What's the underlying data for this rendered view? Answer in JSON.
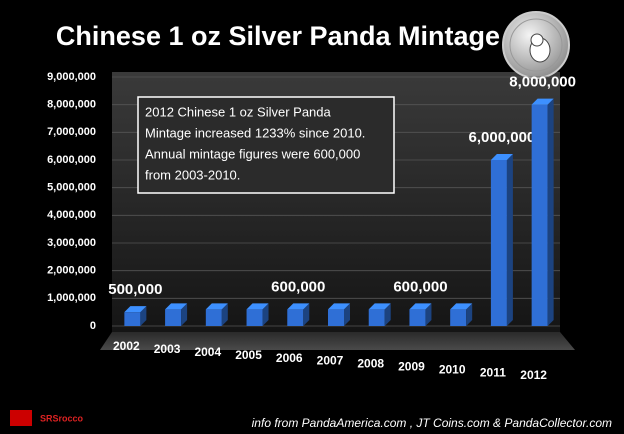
{
  "chart_data": {
    "type": "bar3d",
    "title": "Chinese 1 oz Silver Panda Mintage",
    "categories": [
      "2002",
      "2003",
      "2004",
      "2005",
      "2006",
      "2007",
      "2008",
      "2009",
      "2010",
      "2011",
      "2012"
    ],
    "values": [
      500000,
      600000,
      600000,
      600000,
      600000,
      600000,
      600000,
      600000,
      600000,
      6000000,
      8000000
    ],
    "value_labels": [
      "500,000",
      null,
      null,
      null,
      "600,000",
      null,
      null,
      "600,000",
      null,
      "6,000,000",
      "8,000,000"
    ],
    "color": "#2f6fd6",
    "ylim": [
      0,
      9000000
    ],
    "yticks": [
      0,
      {
        "value": 1000000,
        "label": "1,000,000"
      },
      {
        "value": 2000000,
        "label": "2,000,000"
      },
      {
        "value": 3000000,
        "label": "3,000,000"
      },
      {
        "value": 4000000,
        "label": "4,000,000"
      },
      {
        "value": 5000000,
        "label": "5,000,000"
      },
      {
        "value": 6000000,
        "label": "6,000,000"
      },
      {
        "value": 7000000,
        "label": "7,000,000"
      },
      {
        "value": 8000000,
        "label": "8,000,000"
      },
      {
        "value": 9000000,
        "label": "9,000,000"
      }
    ],
    "grid": true,
    "annotation": [
      "2012 Chinese 1 oz Silver Panda",
      "Mintage increased 1233% since 2010.",
      "Annual mintage figures were 600,000",
      "from 2003-2010."
    ],
    "source": "info from PandaAmerica.com , JT Coins.com & PandaCollector.com",
    "logo": "SRSrocco"
  }
}
